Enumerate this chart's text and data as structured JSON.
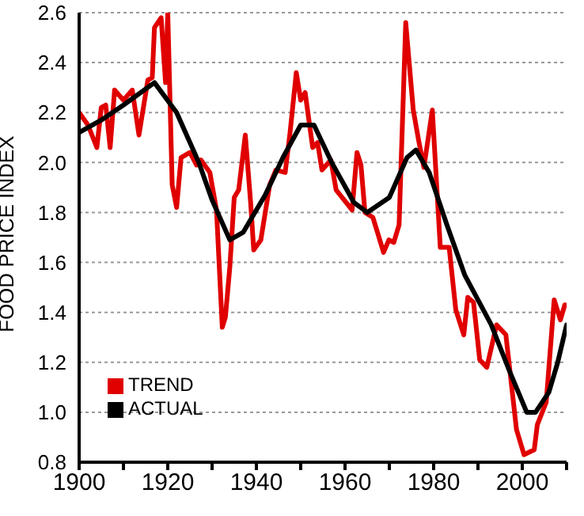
{
  "chart_data": {
    "type": "line",
    "ylabel": "FOOD PRICE INDEX",
    "xlim": [
      1900,
      2010
    ],
    "xticks": [
      1900,
      {
        "value": 1910,
        "label": null
      },
      1920,
      {
        "value": 1930,
        "label": null
      },
      1940,
      {
        "value": 1950,
        "label": null
      },
      1960,
      {
        "value": 1970,
        "label": null
      },
      1980,
      {
        "value": 1990,
        "label": null
      },
      2000,
      {
        "value": 2010,
        "label": null
      }
    ],
    "ylim": [
      0.8,
      2.6
    ],
    "yticks": [
      0.8,
      {
        "value": 1,
        "label": "1.0"
      },
      1.2,
      1.4,
      1.6,
      1.8,
      {
        "value": 2,
        "label": "2.0"
      },
      2.2,
      2.4,
      2.6
    ],
    "grid": "y",
    "legend": "bottom left",
    "marker": "none",
    "line_style": "solid",
    "series": [
      {
        "name": "TREND",
        "color": "#e00000",
        "x": [
          1900,
          1902,
          1904,
          1905,
          1906,
          1907,
          1908,
          1910,
          1912,
          1913.5,
          1915.5,
          1916.5,
          1917,
          1918.5,
          1919.5,
          1920,
          1921,
          1922,
          1923,
          1925,
          1926.5,
          1927.5,
          1929.5,
          1931,
          1932.3,
          1933,
          1934,
          1935,
          1936,
          1937.5,
          1938.7,
          1939.4,
          1941,
          1943,
          1944.4,
          1946.5,
          1947.6,
          1949,
          1950,
          1951,
          1952.7,
          1953.8,
          1954.8,
          1956.8,
          1958,
          1961.6,
          1962.7,
          1963.6,
          1964.5,
          1966.3,
          1968.7,
          1969.9,
          1971,
          1972.2,
          1973.7,
          1975.4,
          1976.6,
          1977.8,
          1979.7,
          1981.5,
          1983.5,
          1985,
          1986.8,
          1987.7,
          1989,
          1990.4,
          1992,
          1994.2,
          1996.3,
          1998.7,
          2000.4,
          2002.7,
          2003.4,
          2005.4,
          2007.2,
          2008.6,
          2009.6
        ],
        "values": [
          2.2,
          2.15,
          2.06,
          2.22,
          2.23,
          2.06,
          2.29,
          2.25,
          2.29,
          2.11,
          2.33,
          2.34,
          2.54,
          2.58,
          2.32,
          2.6,
          1.91,
          1.82,
          2.02,
          2.04,
          1.99,
          2.01,
          1.96,
          1.81,
          1.34,
          1.38,
          1.58,
          1.86,
          1.89,
          2.11,
          1.84,
          1.65,
          1.69,
          1.91,
          1.97,
          1.96,
          2.12,
          2.36,
          2.25,
          2.28,
          2.06,
          2.08,
          1.97,
          2.01,
          1.89,
          1.81,
          2.04,
          1.99,
          1.8,
          1.78,
          1.64,
          1.69,
          1.68,
          1.75,
          2.56,
          2.21,
          2.09,
          1.98,
          2.21,
          1.66,
          1.66,
          1.41,
          1.31,
          1.46,
          1.44,
          1.21,
          1.18,
          1.35,
          1.31,
          0.93,
          0.83,
          0.85,
          0.95,
          1.04,
          1.45,
          1.37,
          1.43
        ]
      },
      {
        "name": "ACTUAL",
        "color": "#000000",
        "x": [
          1900,
          1905,
          1910,
          1917,
          1922,
          1927,
          1930,
          1934,
          1937,
          1942,
          1946,
          1950,
          1953,
          1957,
          1962,
          1965,
          1970,
          1974,
          1976,
          1979,
          1983,
          1987,
          1993,
          1997,
          2001,
          2003,
          2006,
          2008,
          2010
        ],
        "values": [
          2.12,
          2.17,
          2.23,
          2.32,
          2.2,
          2.0,
          1.85,
          1.69,
          1.72,
          1.87,
          2.02,
          2.15,
          2.15,
          2.0,
          1.84,
          1.8,
          1.86,
          2.02,
          2.05,
          1.96,
          1.75,
          1.55,
          1.35,
          1.17,
          1.0,
          1.0,
          1.08,
          1.2,
          1.35
        ]
      }
    ]
  }
}
